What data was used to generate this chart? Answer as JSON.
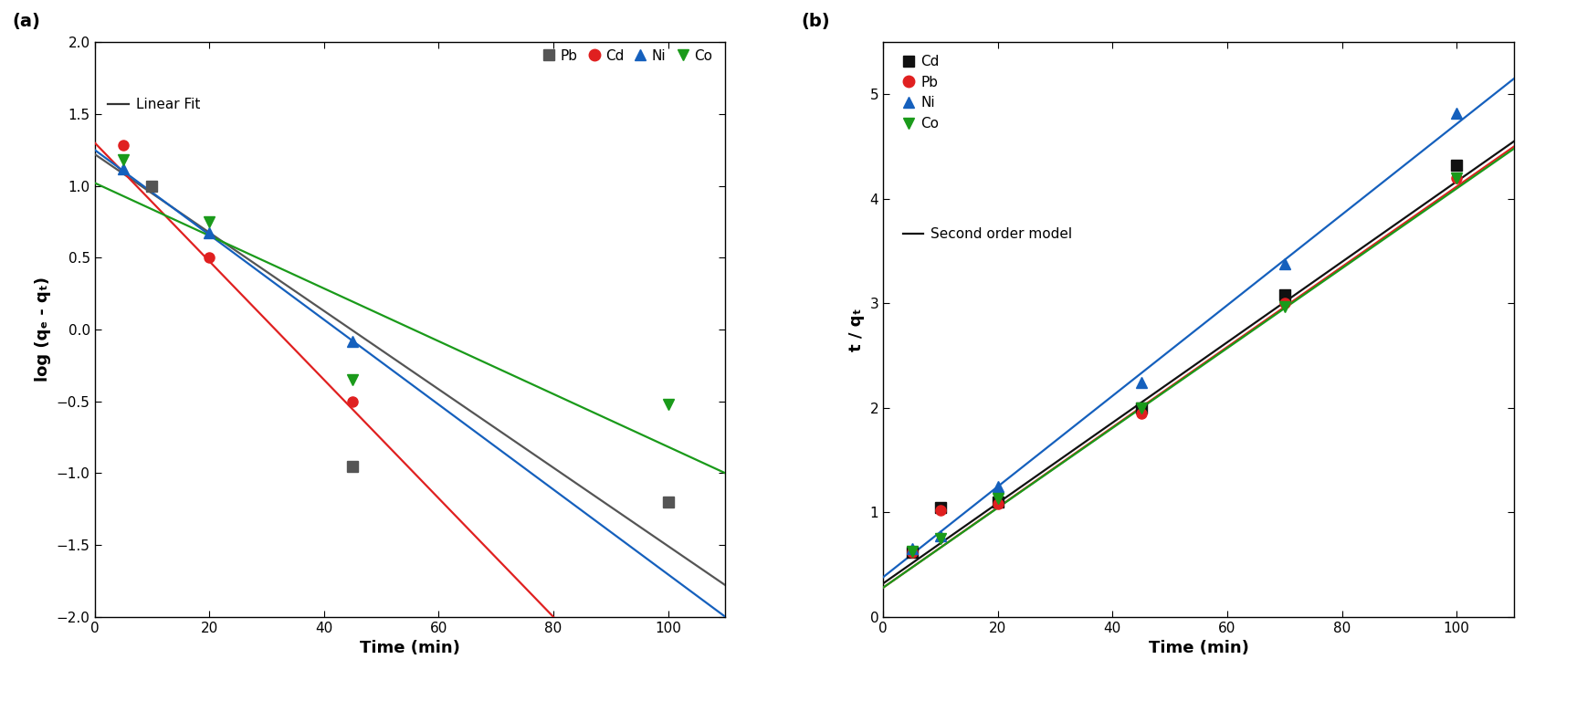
{
  "panel_a": {
    "title": "(a)",
    "xlabel": "Time (min)",
    "ylabel": "log (qₑ - qₜ)",
    "xlim": [
      0,
      110
    ],
    "ylim": [
      -2.0,
      2.0
    ],
    "xticks": [
      0,
      20,
      40,
      60,
      80,
      100
    ],
    "yticks": [
      -2.0,
      -1.5,
      -1.0,
      -0.5,
      0.0,
      0.5,
      1.0,
      1.5,
      2.0
    ],
    "series": {
      "Pb": {
        "color": "#555555",
        "marker": "s",
        "x": [
          10,
          45,
          100
        ],
        "y": [
          1.0,
          -0.95,
          -1.2
        ],
        "fit_x": [
          0,
          110
        ],
        "fit_y": [
          1.22,
          -1.78
        ]
      },
      "Cd": {
        "color": "#e02020",
        "marker": "o",
        "x": [
          5,
          20,
          45
        ],
        "y": [
          1.28,
          0.5,
          -0.5
        ],
        "fit_x": [
          0,
          80
        ],
        "fit_y": [
          1.3,
          -2.0
        ]
      },
      "Ni": {
        "color": "#1560bd",
        "marker": "^",
        "x": [
          5,
          20,
          45
        ],
        "y": [
          1.12,
          0.67,
          -0.08
        ],
        "fit_x": [
          0,
          110
        ],
        "fit_y": [
          1.25,
          -2.0
        ]
      },
      "Co": {
        "color": "#1a9a1a",
        "marker": "v",
        "x": [
          5,
          20,
          45,
          100
        ],
        "y": [
          1.18,
          0.75,
          -0.35,
          -0.52
        ],
        "fit_x": [
          0,
          110
        ],
        "fit_y": [
          1.02,
          -1.0
        ]
      }
    },
    "legend_order": [
      "Pb",
      "Cd",
      "Ni",
      "Co"
    ]
  },
  "panel_b": {
    "title": "(b)",
    "xlabel": "Time (min)",
    "ylabel": "t / qₜ",
    "xlim": [
      0,
      110
    ],
    "ylim": [
      0,
      5.5
    ],
    "xticks": [
      0,
      20,
      40,
      60,
      80,
      100
    ],
    "yticks": [
      0,
      1,
      2,
      3,
      4,
      5
    ],
    "series": {
      "Cd": {
        "color": "#111111",
        "marker": "s",
        "x": [
          5,
          10,
          20,
          45,
          70,
          100
        ],
        "y": [
          0.62,
          1.05,
          1.1,
          2.0,
          3.08,
          4.32
        ],
        "fit_x": [
          0,
          110
        ],
        "fit_y": [
          0.32,
          4.55
        ]
      },
      "Pb": {
        "color": "#e02020",
        "marker": "o",
        "x": [
          5,
          10,
          20,
          45,
          70,
          100
        ],
        "y": [
          0.62,
          1.02,
          1.08,
          1.95,
          3.0,
          4.2
        ],
        "fit_x": [
          0,
          110
        ],
        "fit_y": [
          0.28,
          4.5
        ]
      },
      "Ni": {
        "color": "#1560bd",
        "marker": "^",
        "x": [
          5,
          10,
          20,
          45,
          70,
          100
        ],
        "y": [
          0.65,
          0.78,
          1.25,
          2.24,
          3.38,
          4.82
        ],
        "fit_x": [
          0,
          110
        ],
        "fit_y": [
          0.38,
          5.15
        ]
      },
      "Co": {
        "color": "#1a9a1a",
        "marker": "v",
        "x": [
          5,
          10,
          20,
          45,
          70,
          100
        ],
        "y": [
          0.63,
          0.75,
          1.13,
          2.0,
          2.97,
          4.2
        ],
        "fit_x": [
          0,
          110
        ],
        "fit_y": [
          0.28,
          4.48
        ]
      }
    },
    "legend_order": [
      "Cd",
      "Pb",
      "Ni",
      "Co"
    ]
  }
}
